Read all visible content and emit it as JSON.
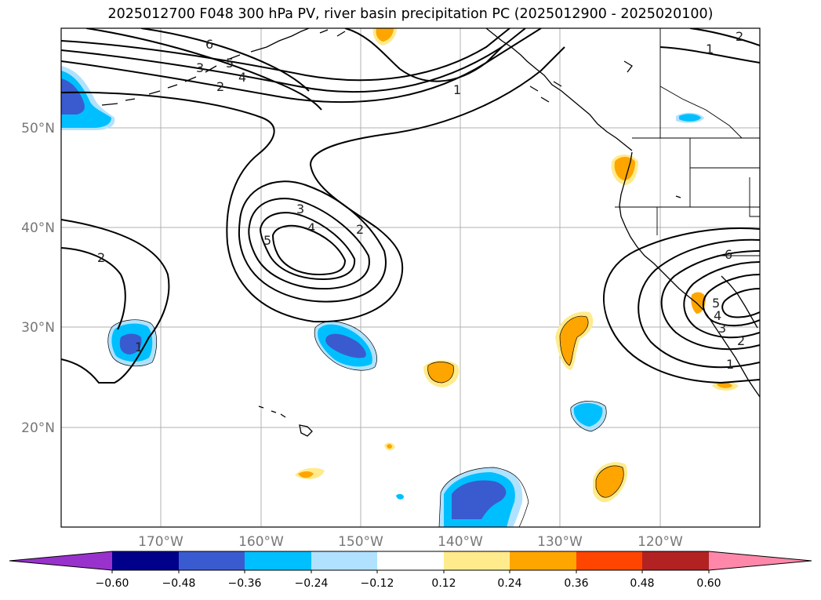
{
  "title": "2025012700 F048 300 hPa PV, river basin precipitation PC (2025012900 - 2025020100)",
  "map": {
    "lon_range": [
      -180,
      -110
    ],
    "lat_range": [
      10,
      60
    ],
    "lon_ticks": [
      {
        "value": -170,
        "label": "170°W"
      },
      {
        "value": -160,
        "label": "160°W"
      },
      {
        "value": -150,
        "label": "150°W"
      },
      {
        "value": -140,
        "label": "140°W"
      },
      {
        "value": -130,
        "label": "130°W"
      },
      {
        "value": -120,
        "label": "120°W"
      }
    ],
    "lat_ticks": [
      {
        "value": 20,
        "label": "20°N"
      },
      {
        "value": 30,
        "label": "30°N"
      },
      {
        "value": 40,
        "label": "40°N"
      },
      {
        "value": 50,
        "label": "50°N"
      }
    ],
    "gridlines": true,
    "contour_labels": [
      "6",
      "5",
      "4",
      "3",
      "2",
      "1",
      "3",
      "4",
      "2",
      "5",
      "2",
      "1",
      "2",
      "1",
      "6",
      "5",
      "4",
      "3",
      "1",
      "2"
    ]
  },
  "colorbar": {
    "ticks": [
      "−0.60",
      "−0.48",
      "−0.36",
      "−0.24",
      "−0.12",
      "0.12",
      "0.24",
      "0.36",
      "0.48",
      "0.60"
    ],
    "colors": [
      "#9932cc",
      "#00008b",
      "#3a5bcf",
      "#00bfff",
      "#b0e2ff",
      "#ffffff",
      "#ffeb8c",
      "#ffa500",
      "#ff4500",
      "#b22222",
      "#ff88aa"
    ]
  }
}
